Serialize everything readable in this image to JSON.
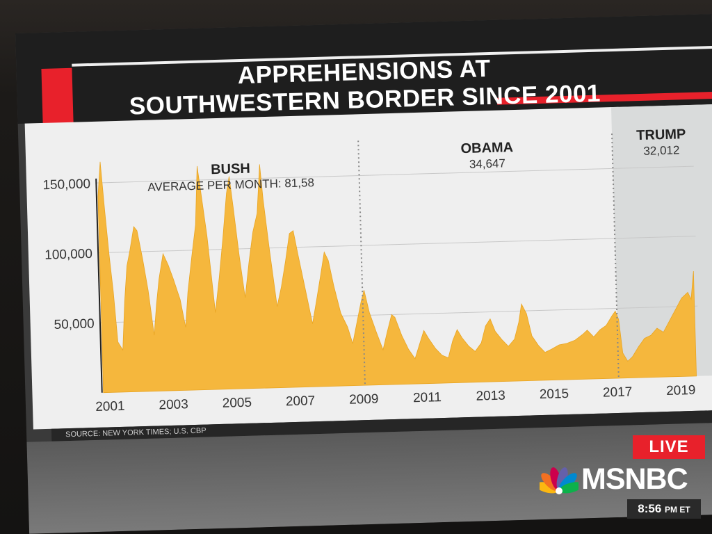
{
  "title_line1": "APPREHENSIONS AT",
  "title_line2": "SOUTHWESTERN BORDER SINCE 2001",
  "source": "SOURCE: NEW YORK TIMES; U.S. CBP",
  "live_label": "LIVE",
  "network": "MSNBC",
  "time": "8:56",
  "time_suffix": "PM ET",
  "colors": {
    "bars": "#f5b73d",
    "trump_panel": "#d9dbdb",
    "red": "#e8212b"
  },
  "chart_data": {
    "type": "area",
    "title": "APPREHENSIONS AT SOUTHWESTERN BORDER SINCE 2001",
    "xlabel": "",
    "ylabel": "",
    "ylim": [
      0,
      170000
    ],
    "xlim": [
      2000.75,
      2019.6
    ],
    "grid": true,
    "y_ticks": [
      150000,
      100000,
      50000
    ],
    "y_tick_labels": [
      "150,000",
      "100,000",
      "50,000"
    ],
    "x_ticks": [
      2001,
      2003,
      2005,
      2007,
      2009,
      2011,
      2013,
      2015,
      2017,
      2019
    ],
    "x_tick_labels": [
      "2001",
      "2003",
      "2005",
      "2007",
      "2009",
      "2011",
      "2013",
      "2015",
      "2017",
      "2019"
    ],
    "annotations": [
      {
        "label": "BUSH",
        "sublabel": "AVERAGE PER MONTH: 81,58",
        "x": 2005.0
      },
      {
        "label": "OBAMA",
        "sublabel": "34,647",
        "x": 2013.1
      },
      {
        "label": "TRUMP",
        "sublabel": "32,012",
        "x": 2018.6
      }
    ],
    "dividers": [
      2009.05,
      2017.05
    ],
    "series": [
      {
        "values": [
          [
            2000.8,
            140000
          ],
          [
            2000.9,
            165000
          ],
          [
            2001.0,
            130000
          ],
          [
            2001.1,
            98000
          ],
          [
            2001.2,
            72000
          ],
          [
            2001.3,
            36000
          ],
          [
            2001.45,
            30000
          ],
          [
            2001.55,
            65000
          ],
          [
            2001.65,
            90000
          ],
          [
            2001.75,
            100000
          ],
          [
            2001.9,
            118000
          ],
          [
            2002.0,
            115000
          ],
          [
            2002.15,
            95000
          ],
          [
            2002.3,
            72000
          ],
          [
            2002.45,
            40000
          ],
          [
            2002.55,
            62000
          ],
          [
            2002.65,
            80000
          ],
          [
            2002.8,
            98000
          ],
          [
            2002.95,
            90000
          ],
          [
            2003.1,
            80000
          ],
          [
            2003.3,
            65000
          ],
          [
            2003.45,
            45000
          ],
          [
            2003.55,
            70000
          ],
          [
            2003.7,
            95000
          ],
          [
            2003.85,
            118000
          ],
          [
            2003.95,
            160000
          ],
          [
            2004.05,
            140000
          ],
          [
            2004.2,
            110000
          ],
          [
            2004.4,
            55000
          ],
          [
            2004.55,
            80000
          ],
          [
            2004.7,
            108000
          ],
          [
            2004.85,
            140000
          ],
          [
            2004.95,
            152000
          ],
          [
            2005.05,
            130000
          ],
          [
            2005.2,
            95000
          ],
          [
            2005.35,
            65000
          ],
          [
            2005.5,
            90000
          ],
          [
            2005.65,
            112000
          ],
          [
            2005.8,
            125000
          ],
          [
            2005.92,
            160000
          ],
          [
            2006.0,
            135000
          ],
          [
            2006.15,
            100000
          ],
          [
            2006.35,
            58000
          ],
          [
            2006.5,
            72000
          ],
          [
            2006.65,
            90000
          ],
          [
            2006.8,
            110000
          ],
          [
            2006.92,
            112000
          ],
          [
            2007.05,
            95000
          ],
          [
            2007.25,
            70000
          ],
          [
            2007.45,
            45000
          ],
          [
            2007.6,
            62000
          ],
          [
            2007.75,
            80000
          ],
          [
            2007.88,
            96000
          ],
          [
            2008.0,
            90000
          ],
          [
            2008.15,
            72000
          ],
          [
            2008.35,
            52000
          ],
          [
            2008.55,
            42000
          ],
          [
            2008.7,
            30000
          ],
          [
            2008.85,
            45000
          ],
          [
            2009.0,
            60000
          ],
          [
            2009.1,
            68000
          ],
          [
            2009.25,
            52000
          ],
          [
            2009.45,
            38000
          ],
          [
            2009.65,
            25000
          ],
          [
            2009.8,
            38000
          ],
          [
            2009.95,
            50000
          ],
          [
            2010.05,
            48000
          ],
          [
            2010.25,
            35000
          ],
          [
            2010.45,
            25000
          ],
          [
            2010.65,
            18000
          ],
          [
            2010.8,
            28000
          ],
          [
            2010.95,
            38000
          ],
          [
            2011.1,
            32000
          ],
          [
            2011.3,
            25000
          ],
          [
            2011.5,
            20000
          ],
          [
            2011.7,
            18000
          ],
          [
            2011.85,
            30000
          ],
          [
            2012.0,
            38000
          ],
          [
            2012.15,
            32000
          ],
          [
            2012.35,
            26000
          ],
          [
            2012.55,
            22000
          ],
          [
            2012.75,
            28000
          ],
          [
            2012.9,
            40000
          ],
          [
            2013.05,
            45000
          ],
          [
            2013.2,
            36000
          ],
          [
            2013.4,
            30000
          ],
          [
            2013.6,
            25000
          ],
          [
            2013.8,
            30000
          ],
          [
            2013.95,
            42000
          ],
          [
            2014.05,
            55000
          ],
          [
            2014.2,
            48000
          ],
          [
            2014.35,
            32000
          ],
          [
            2014.55,
            25000
          ],
          [
            2014.75,
            20000
          ],
          [
            2014.95,
            22000
          ],
          [
            2015.2,
            25000
          ],
          [
            2015.45,
            26000
          ],
          [
            2015.7,
            28000
          ],
          [
            2015.95,
            32000
          ],
          [
            2016.1,
            35000
          ],
          [
            2016.3,
            30000
          ],
          [
            2016.5,
            35000
          ],
          [
            2016.7,
            38000
          ],
          [
            2016.9,
            45000
          ],
          [
            2017.0,
            48000
          ],
          [
            2017.1,
            42000
          ],
          [
            2017.2,
            18000
          ],
          [
            2017.35,
            12000
          ],
          [
            2017.5,
            15000
          ],
          [
            2017.7,
            22000
          ],
          [
            2017.9,
            28000
          ],
          [
            2018.1,
            30000
          ],
          [
            2018.3,
            35000
          ],
          [
            2018.5,
            32000
          ],
          [
            2018.7,
            40000
          ],
          [
            2018.9,
            48000
          ],
          [
            2019.1,
            56000
          ],
          [
            2019.3,
            60000
          ],
          [
            2019.4,
            55000
          ],
          [
            2019.5,
            75000
          ]
        ]
      }
    ]
  }
}
